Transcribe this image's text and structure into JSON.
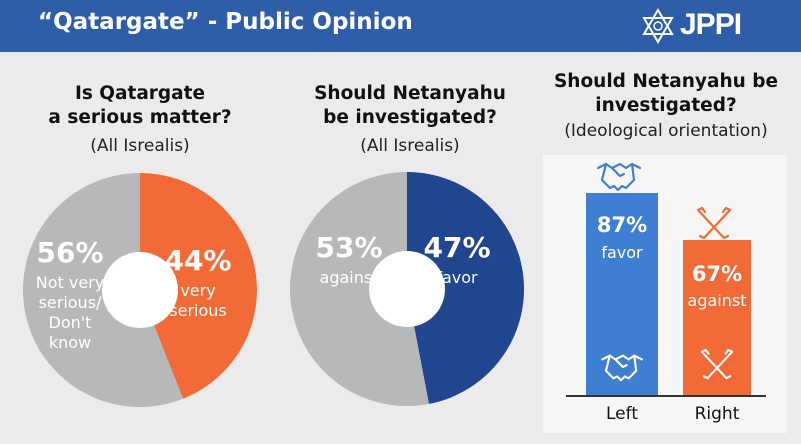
{
  "header": {
    "title": "“Qatargate” - Public Opinion",
    "logo_text": "JPPI"
  },
  "colors": {
    "header_bg": "#2f5ea8",
    "gray": "#b7b8ba",
    "orange": "#f26a36",
    "navy": "#1f468e",
    "blue": "#3f7fd3"
  },
  "chart_data": [
    {
      "type": "pie",
      "title": "Is Qatargate a serious matter?",
      "title_lines": [
        "Is Qatargate",
        "a serious matter?"
      ],
      "subtitle": "(All Isrealis)",
      "slices": [
        {
          "label": "very serious",
          "label_lines": [
            "very",
            "serious"
          ],
          "value": 44,
          "display": "44%",
          "color": "#f26a36"
        },
        {
          "label": "Not very serious/ Don't know",
          "label_lines": [
            "Not very",
            "serious/",
            "Don't",
            "know"
          ],
          "value": 56,
          "display": "56%",
          "color": "#b7b8ba"
        }
      ]
    },
    {
      "type": "pie",
      "title": "Should Netanyahu be investigated?",
      "title_lines": [
        "Should Netanyahu",
        "be investigated?"
      ],
      "subtitle": "(All Isrealis)",
      "slices": [
        {
          "label": "favor",
          "label_lines": [
            "favor"
          ],
          "value": 47,
          "display": "47%",
          "color": "#1f468e"
        },
        {
          "label": "against",
          "label_lines": [
            "against"
          ],
          "value": 53,
          "display": "53%",
          "color": "#b7b8ba"
        }
      ]
    },
    {
      "type": "bar",
      "title": "Should Netanyahu be investigated?",
      "title_lines": [
        "Should Netanyahu be",
        "investigated?"
      ],
      "subtitle": "(Ideological orientation)",
      "categories": [
        "Left",
        "Right"
      ],
      "values": [
        87,
        67
      ],
      "value_labels": [
        "87%",
        "67%"
      ],
      "value_sublabels": [
        "favor",
        "against"
      ],
      "colors": [
        "#3f7fd3",
        "#f26a36"
      ],
      "ylim": [
        0,
        100
      ]
    }
  ]
}
